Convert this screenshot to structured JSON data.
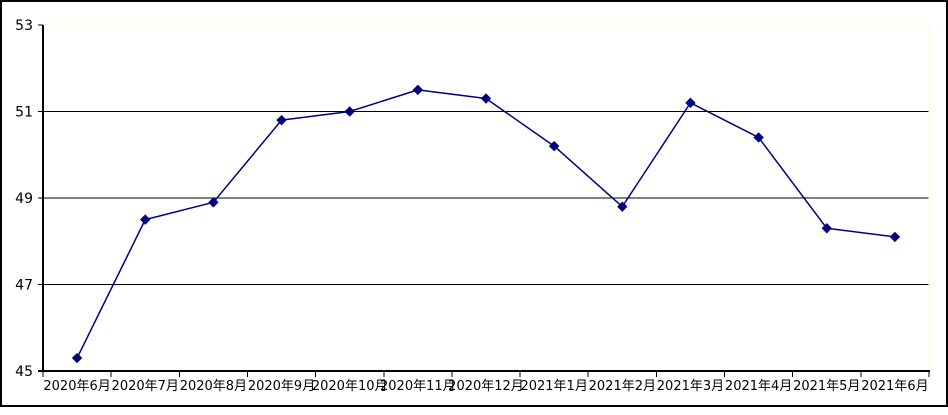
{
  "chart_data": {
    "type": "line",
    "categories": [
      "2020年6月",
      "2020年7月",
      "2020年8月",
      "2020年9月",
      "2020年10月",
      "2020年11月",
      "2020年12月",
      "2021年1月",
      "2021年2月",
      "2021年3月",
      "2021年4月",
      "2021年5月",
      "2021年6月"
    ],
    "values": [
      45.3,
      48.5,
      48.9,
      50.8,
      51.0,
      51.5,
      51.3,
      50.2,
      48.8,
      51.2,
      50.4,
      48.3,
      48.1
    ],
    "title": "",
    "xlabel": "",
    "ylabel": "",
    "ylim": [
      45,
      53
    ],
    "yticks": [
      45,
      47,
      49,
      51,
      53
    ],
    "grid": "horizontal-only",
    "legend": "none",
    "marker_style": "diamond",
    "colors": {
      "series": "#000080",
      "marker": "#000080",
      "gridline": "#000000",
      "axis": "#000000",
      "plot_border_top_right": "#FFFFC8",
      "outer_frame": "#000000",
      "background": "#FFFFFF"
    }
  }
}
